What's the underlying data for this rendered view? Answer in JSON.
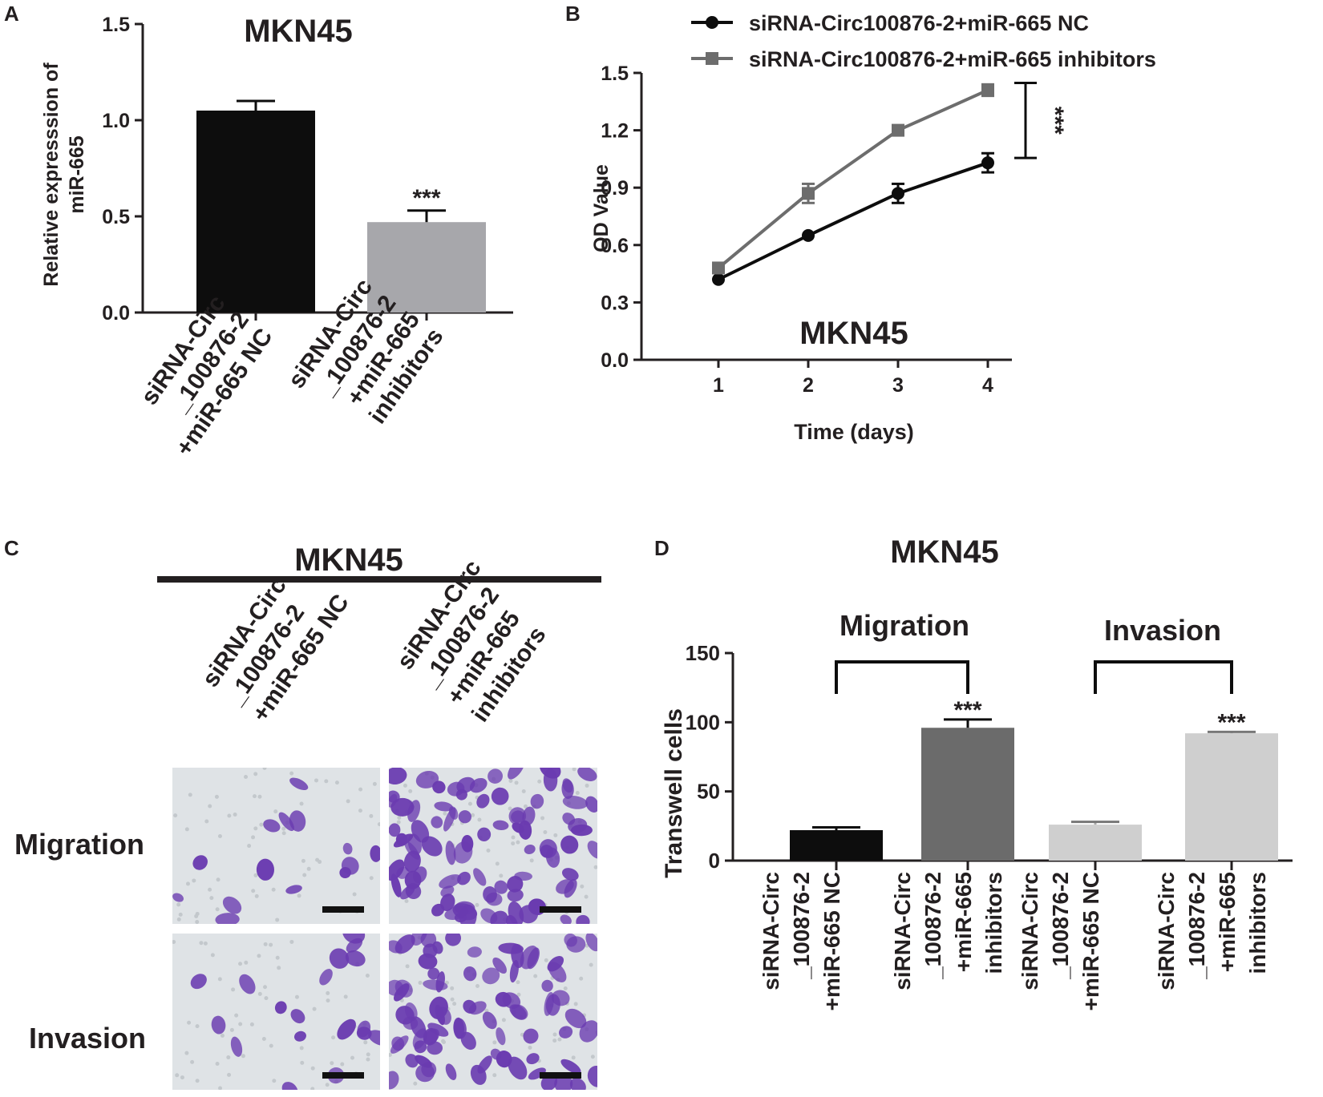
{
  "panels": {
    "A": {
      "letter": "A"
    },
    "B": {
      "letter": "B"
    },
    "C": {
      "letter": "C",
      "title": "MKN45",
      "col_labels": [
        [
          "siRNA-Circ",
          "_100876-2",
          "+miR-665 NC"
        ],
        [
          "siRNA-Circ",
          "_100876-2",
          "+miR-665",
          "inhibitors"
        ]
      ],
      "row_labels": [
        "Migration",
        "Invasion"
      ]
    },
    "D": {
      "letter": "D"
    }
  },
  "colors": {
    "black": "#0d0d0d",
    "gray_bar": "#a7a7ab",
    "dark_gray": "#6b6b6b",
    "light_gray": "#cfcfcf",
    "line_gray": "#6d6d6d",
    "stain_purple": "#6a3bb0",
    "micro_bg": "#dfe3e6"
  },
  "chart_data": [
    {
      "panel": "A",
      "type": "bar",
      "title": "MKN45",
      "ylabel": [
        "Relative expresssion of",
        "miR-665"
      ],
      "ylim": [
        0,
        1.5
      ],
      "yticks": [
        "0.0",
        "0.5",
        "1.0",
        "1.5"
      ],
      "categories": [
        [
          "siRNA-Circ",
          "_100876-2",
          "+miR-665 NC"
        ],
        [
          "siRNA-Circ",
          "_100876-2",
          "+miR-665",
          "inhibitors"
        ]
      ],
      "values": [
        1.05,
        0.47
      ],
      "errors": [
        0.05,
        0.06
      ],
      "colors": [
        "#0d0d0d",
        "#a7a7ab"
      ],
      "annotations": [
        "",
        "***"
      ]
    },
    {
      "panel": "B",
      "type": "line",
      "title": "MKN45",
      "xlabel": "Time (days)",
      "ylabel": "OD Value",
      "xticks": [
        "1",
        "2",
        "3",
        "4"
      ],
      "yticks": [
        "0.0",
        "0.3",
        "0.6",
        "0.9",
        "1.2",
        "1.5"
      ],
      "ylim": [
        0,
        1.5
      ],
      "x": [
        1,
        2,
        3,
        4
      ],
      "series": [
        {
          "name": "siRNA-Circ100876-2+miR-665 NC",
          "marker": "circle",
          "color": "#0d0d0d",
          "values": [
            0.42,
            0.65,
            0.87,
            1.03
          ],
          "errors": [
            0.01,
            0.01,
            0.05,
            0.05
          ]
        },
        {
          "name": "siRNA-Circ100876-2+miR-665 inhibitors",
          "marker": "square",
          "color": "#6d6d6d",
          "values": [
            0.48,
            0.87,
            1.2,
            1.41
          ],
          "errors": [
            0.01,
            0.05,
            0.02,
            0.03
          ]
        }
      ],
      "significance": "***",
      "legend": "top"
    },
    {
      "panel": "D",
      "type": "bar",
      "title": "MKN45",
      "ylabel": "Transwell cells",
      "ylim": [
        0,
        150
      ],
      "yticks": [
        "0",
        "50",
        "100",
        "150"
      ],
      "groups": [
        "Migration",
        "Invasion"
      ],
      "categories": [
        [
          "siRNA-Circ",
          "_100876-2",
          "+miR-665 NC"
        ],
        [
          "siRNA-Circ",
          "_100876-2",
          "+miR-665",
          "inhibitors"
        ],
        [
          "siRNA-Circ",
          "_100876-2",
          "+miR-665 NC"
        ],
        [
          "siRNA-Circ",
          "_100876-2",
          "+miR-665",
          "inhibitors"
        ]
      ],
      "values": [
        22,
        96,
        26,
        92
      ],
      "errors": [
        2,
        6,
        2,
        1
      ],
      "colors": [
        "#0d0d0d",
        "#6b6b6b",
        "#cfcfcf",
        "#cfcfcf"
      ],
      "annotations": [
        "",
        "***",
        "",
        "***"
      ]
    }
  ]
}
